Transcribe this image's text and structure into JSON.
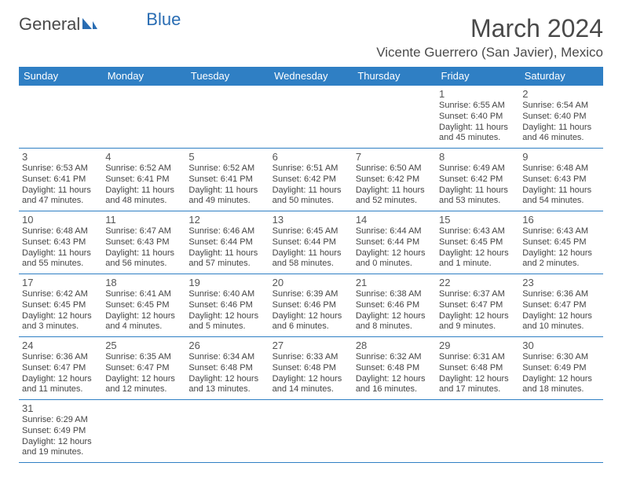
{
  "logo": {
    "part1": "General",
    "part2": "Blue"
  },
  "title": "March 2024",
  "location": "Vicente Guerrero (San Javier), Mexico",
  "colors": {
    "header_bg": "#2f7fc4",
    "header_fg": "#ffffff",
    "border": "#2f7fc4",
    "text": "#444444",
    "logo_blue": "#2a6db3",
    "background": "#ffffff"
  },
  "dayNames": [
    "Sunday",
    "Monday",
    "Tuesday",
    "Wednesday",
    "Thursday",
    "Friday",
    "Saturday"
  ],
  "weeks": [
    [
      null,
      null,
      null,
      null,
      null,
      {
        "n": "1",
        "sr": "Sunrise: 6:55 AM",
        "ss": "Sunset: 6:40 PM",
        "d1": "Daylight: 11 hours",
        "d2": "and 45 minutes."
      },
      {
        "n": "2",
        "sr": "Sunrise: 6:54 AM",
        "ss": "Sunset: 6:40 PM",
        "d1": "Daylight: 11 hours",
        "d2": "and 46 minutes."
      }
    ],
    [
      {
        "n": "3",
        "sr": "Sunrise: 6:53 AM",
        "ss": "Sunset: 6:41 PM",
        "d1": "Daylight: 11 hours",
        "d2": "and 47 minutes."
      },
      {
        "n": "4",
        "sr": "Sunrise: 6:52 AM",
        "ss": "Sunset: 6:41 PM",
        "d1": "Daylight: 11 hours",
        "d2": "and 48 minutes."
      },
      {
        "n": "5",
        "sr": "Sunrise: 6:52 AM",
        "ss": "Sunset: 6:41 PM",
        "d1": "Daylight: 11 hours",
        "d2": "and 49 minutes."
      },
      {
        "n": "6",
        "sr": "Sunrise: 6:51 AM",
        "ss": "Sunset: 6:42 PM",
        "d1": "Daylight: 11 hours",
        "d2": "and 50 minutes."
      },
      {
        "n": "7",
        "sr": "Sunrise: 6:50 AM",
        "ss": "Sunset: 6:42 PM",
        "d1": "Daylight: 11 hours",
        "d2": "and 52 minutes."
      },
      {
        "n": "8",
        "sr": "Sunrise: 6:49 AM",
        "ss": "Sunset: 6:42 PM",
        "d1": "Daylight: 11 hours",
        "d2": "and 53 minutes."
      },
      {
        "n": "9",
        "sr": "Sunrise: 6:48 AM",
        "ss": "Sunset: 6:43 PM",
        "d1": "Daylight: 11 hours",
        "d2": "and 54 minutes."
      }
    ],
    [
      {
        "n": "10",
        "sr": "Sunrise: 6:48 AM",
        "ss": "Sunset: 6:43 PM",
        "d1": "Daylight: 11 hours",
        "d2": "and 55 minutes."
      },
      {
        "n": "11",
        "sr": "Sunrise: 6:47 AM",
        "ss": "Sunset: 6:43 PM",
        "d1": "Daylight: 11 hours",
        "d2": "and 56 minutes."
      },
      {
        "n": "12",
        "sr": "Sunrise: 6:46 AM",
        "ss": "Sunset: 6:44 PM",
        "d1": "Daylight: 11 hours",
        "d2": "and 57 minutes."
      },
      {
        "n": "13",
        "sr": "Sunrise: 6:45 AM",
        "ss": "Sunset: 6:44 PM",
        "d1": "Daylight: 11 hours",
        "d2": "and 58 minutes."
      },
      {
        "n": "14",
        "sr": "Sunrise: 6:44 AM",
        "ss": "Sunset: 6:44 PM",
        "d1": "Daylight: 12 hours",
        "d2": "and 0 minutes."
      },
      {
        "n": "15",
        "sr": "Sunrise: 6:43 AM",
        "ss": "Sunset: 6:45 PM",
        "d1": "Daylight: 12 hours",
        "d2": "and 1 minute."
      },
      {
        "n": "16",
        "sr": "Sunrise: 6:43 AM",
        "ss": "Sunset: 6:45 PM",
        "d1": "Daylight: 12 hours",
        "d2": "and 2 minutes."
      }
    ],
    [
      {
        "n": "17",
        "sr": "Sunrise: 6:42 AM",
        "ss": "Sunset: 6:45 PM",
        "d1": "Daylight: 12 hours",
        "d2": "and 3 minutes."
      },
      {
        "n": "18",
        "sr": "Sunrise: 6:41 AM",
        "ss": "Sunset: 6:45 PM",
        "d1": "Daylight: 12 hours",
        "d2": "and 4 minutes."
      },
      {
        "n": "19",
        "sr": "Sunrise: 6:40 AM",
        "ss": "Sunset: 6:46 PM",
        "d1": "Daylight: 12 hours",
        "d2": "and 5 minutes."
      },
      {
        "n": "20",
        "sr": "Sunrise: 6:39 AM",
        "ss": "Sunset: 6:46 PM",
        "d1": "Daylight: 12 hours",
        "d2": "and 6 minutes."
      },
      {
        "n": "21",
        "sr": "Sunrise: 6:38 AM",
        "ss": "Sunset: 6:46 PM",
        "d1": "Daylight: 12 hours",
        "d2": "and 8 minutes."
      },
      {
        "n": "22",
        "sr": "Sunrise: 6:37 AM",
        "ss": "Sunset: 6:47 PM",
        "d1": "Daylight: 12 hours",
        "d2": "and 9 minutes."
      },
      {
        "n": "23",
        "sr": "Sunrise: 6:36 AM",
        "ss": "Sunset: 6:47 PM",
        "d1": "Daylight: 12 hours",
        "d2": "and 10 minutes."
      }
    ],
    [
      {
        "n": "24",
        "sr": "Sunrise: 6:36 AM",
        "ss": "Sunset: 6:47 PM",
        "d1": "Daylight: 12 hours",
        "d2": "and 11 minutes."
      },
      {
        "n": "25",
        "sr": "Sunrise: 6:35 AM",
        "ss": "Sunset: 6:47 PM",
        "d1": "Daylight: 12 hours",
        "d2": "and 12 minutes."
      },
      {
        "n": "26",
        "sr": "Sunrise: 6:34 AM",
        "ss": "Sunset: 6:48 PM",
        "d1": "Daylight: 12 hours",
        "d2": "and 13 minutes."
      },
      {
        "n": "27",
        "sr": "Sunrise: 6:33 AM",
        "ss": "Sunset: 6:48 PM",
        "d1": "Daylight: 12 hours",
        "d2": "and 14 minutes."
      },
      {
        "n": "28",
        "sr": "Sunrise: 6:32 AM",
        "ss": "Sunset: 6:48 PM",
        "d1": "Daylight: 12 hours",
        "d2": "and 16 minutes."
      },
      {
        "n": "29",
        "sr": "Sunrise: 6:31 AM",
        "ss": "Sunset: 6:48 PM",
        "d1": "Daylight: 12 hours",
        "d2": "and 17 minutes."
      },
      {
        "n": "30",
        "sr": "Sunrise: 6:30 AM",
        "ss": "Sunset: 6:49 PM",
        "d1": "Daylight: 12 hours",
        "d2": "and 18 minutes."
      }
    ],
    [
      {
        "n": "31",
        "sr": "Sunrise: 6:29 AM",
        "ss": "Sunset: 6:49 PM",
        "d1": "Daylight: 12 hours",
        "d2": "and 19 minutes."
      },
      null,
      null,
      null,
      null,
      null,
      null
    ]
  ]
}
